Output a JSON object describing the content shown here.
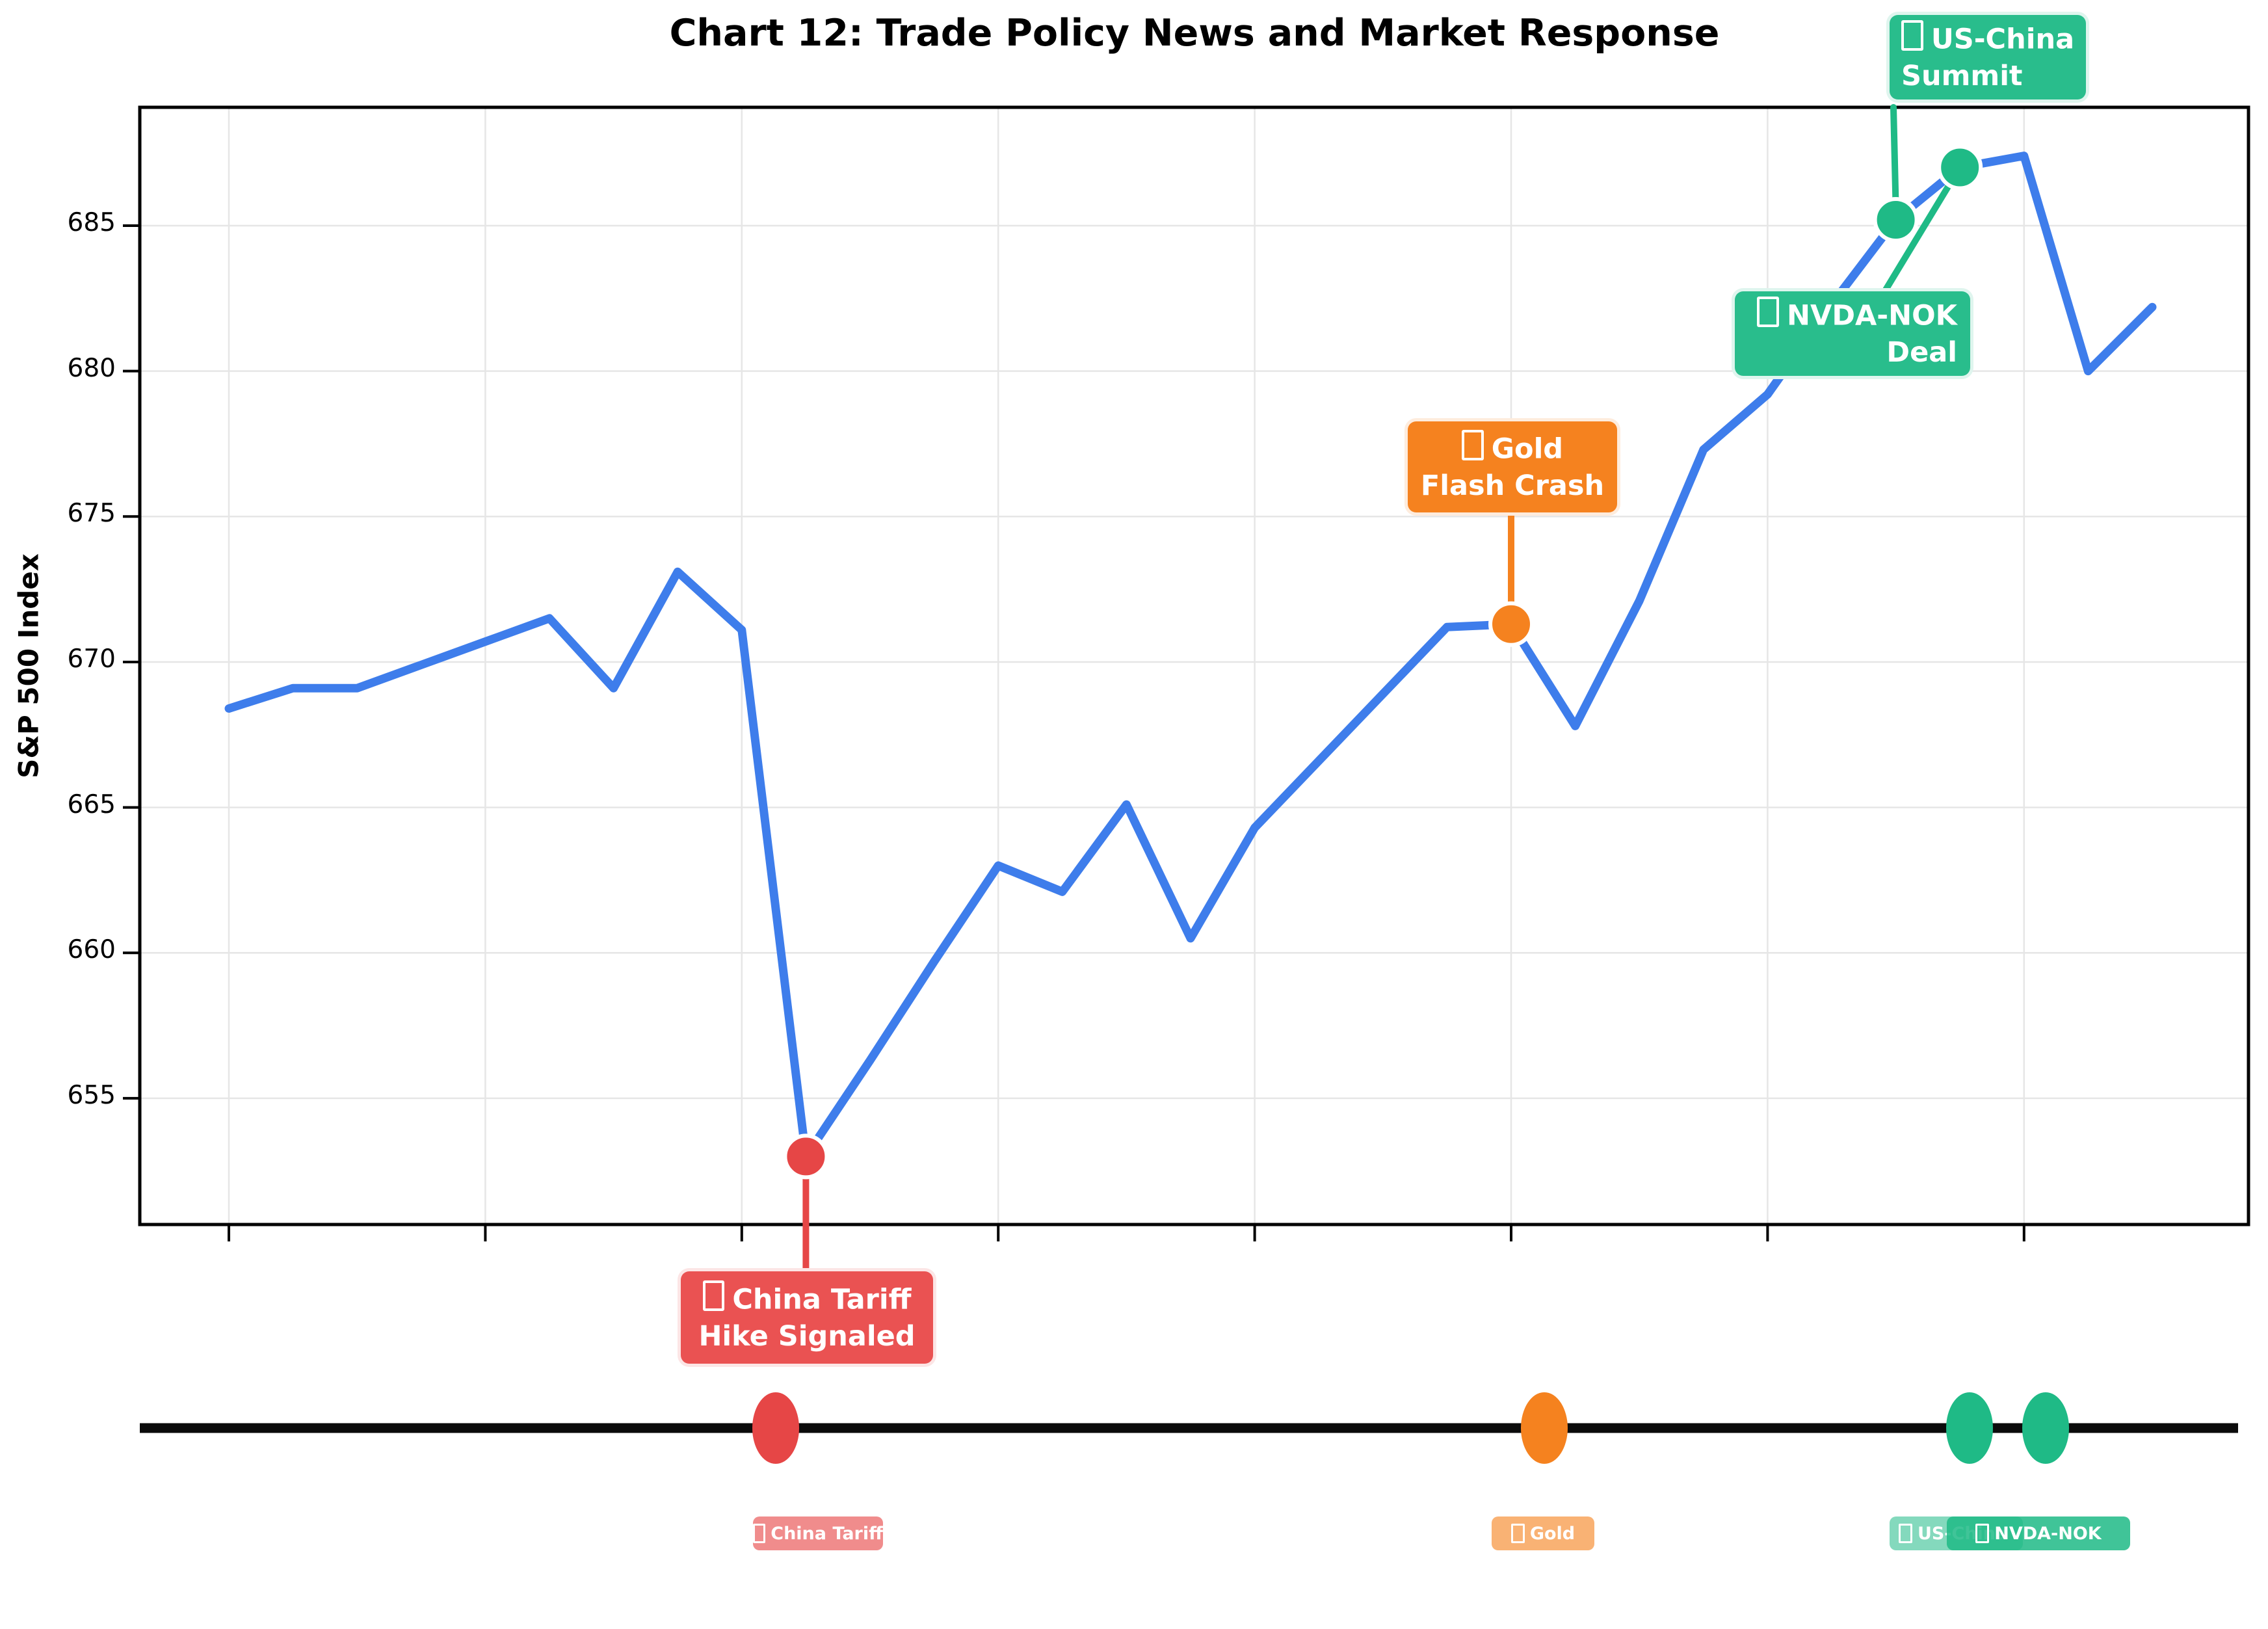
{
  "title": "Chart 12: Trade Policy News and Market Response",
  "y_axis": {
    "label": "S&P 500 Index",
    "ticks": [
      685,
      680,
      675,
      670,
      665,
      660,
      655
    ]
  },
  "chart_data": {
    "type": "line",
    "x": [
      0,
      1,
      2,
      3,
      4,
      5,
      6,
      7,
      8,
      9,
      10,
      11,
      12,
      13,
      14,
      15,
      16,
      17,
      18,
      19,
      20,
      21,
      22,
      23,
      24,
      25,
      26,
      27,
      28,
      29,
      30
    ],
    "values": [
      668.4,
      669.1,
      669.1,
      669.9,
      670.7,
      671.5,
      669.1,
      673.1,
      671.1,
      653.0,
      656.3,
      659.7,
      663.0,
      662.1,
      665.1,
      660.5,
      664.3,
      666.6,
      668.9,
      671.2,
      671.3,
      667.8,
      672.1,
      677.3,
      679.2,
      682.3,
      685.2,
      687.0,
      687.4,
      680.0,
      682.2
    ],
    "title": "Chart 12: Trade Policy News and Market Response",
    "xlabel": "",
    "ylabel": "S&P 500 Index",
    "ylim": [
      650.7,
      689.1
    ],
    "ytick_step": 5,
    "grid": true,
    "line_color": "#3E7DEB",
    "events": [
      {
        "id": "china",
        "label": "China Tariff Hike Signaled",
        "line1": "China Tariff",
        "line2": "Hike Signaled",
        "short_label": "China Tariff",
        "index": 9,
        "value": 653.0,
        "color": "#E64646",
        "box_color": "#EA5252"
      },
      {
        "id": "gold",
        "label": "Gold Flash Crash",
        "line1": "Gold",
        "line2": "Flash Crash",
        "short_label": "Gold",
        "index": 20,
        "value": 671.3,
        "color": "#F5821F",
        "box_color": "#F5821F"
      },
      {
        "id": "uschina",
        "label": "US-China Summit",
        "line1": "US-China",
        "line2": "Summit",
        "short_label": "US-China",
        "index": 26,
        "value": 685.2,
        "color": "#1FBA86",
        "box_color": "#29BD8C"
      },
      {
        "id": "nvda",
        "label": "NVDA-NOK Deal",
        "line1": "NVDA-NOK",
        "line2": "Deal",
        "short_label": "NVDA-NOK",
        "index": 27,
        "value": 687.0,
        "color": "#1FBA86",
        "box_color": "#29BD8C"
      }
    ]
  },
  "timeline": {
    "dots": [
      {
        "event": "china",
        "x": 1193,
        "color": "#E64646"
      },
      {
        "event": "gold",
        "x": 2375,
        "color": "#F5821F"
      },
      {
        "event": "uschina",
        "x": 3029,
        "color": "#1FBA86"
      },
      {
        "event": "nvda",
        "x": 3146,
        "color": "#1FBA86"
      }
    ],
    "labels": {
      "china": "China Tariff",
      "gold": "Gold",
      "uschina": "US-China",
      "nvda": "NVDA-NOK"
    }
  }
}
